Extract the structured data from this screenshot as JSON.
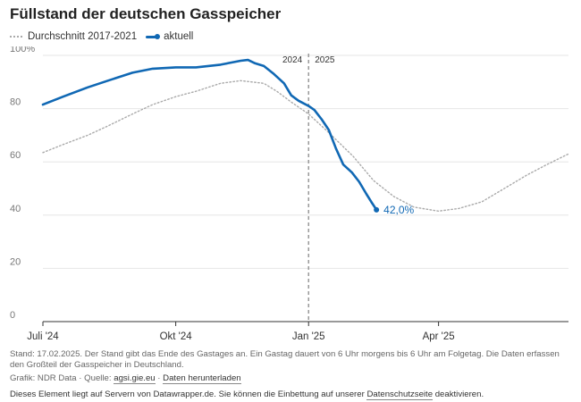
{
  "title": "Füllstand der deutschen Gasspeicher",
  "legend": {
    "average_label": "Durchschnitt 2017-2021",
    "current_label": "aktuell"
  },
  "colors": {
    "current": "#1068b4",
    "average": "#aaaaaa",
    "grid": "#e6e6e6",
    "axis": "#333333",
    "marker": "#999999"
  },
  "chart_data": {
    "type": "line",
    "title": "Füllstand der deutschen Gasspeicher",
    "xlabel": "",
    "ylabel": "",
    "x_unit": "month",
    "x_range": [
      "2024-07-01",
      "2025-06-30"
    ],
    "ylim": [
      0,
      100
    ],
    "y_ticks": [
      0,
      20,
      40,
      60,
      80,
      100
    ],
    "y_tick_labels": [
      "0",
      "20",
      "40",
      "60",
      "80",
      "100%"
    ],
    "x_ticks": [
      {
        "date": "2024-07-01",
        "label": "Juli '24"
      },
      {
        "date": "2024-10-01",
        "label": "Okt '24"
      },
      {
        "date": "2025-01-01",
        "label": "Jan '25"
      },
      {
        "date": "2025-04-01",
        "label": "Apr '25"
      }
    ],
    "grid": true,
    "legend_position": "top-left",
    "year_marker": {
      "date": "2025-01-01",
      "label_before": "2024",
      "label_after": "2025"
    },
    "end_label": "42,0%",
    "series": [
      {
        "name": "Durchschnitt 2017-2021",
        "style": "dotted",
        "points": [
          [
            "2024-07-01",
            63.5
          ],
          [
            "2024-07-15",
            66.5
          ],
          [
            "2024-08-01",
            70
          ],
          [
            "2024-08-15",
            73.5
          ],
          [
            "2024-09-01",
            78
          ],
          [
            "2024-09-15",
            81.5
          ],
          [
            "2024-10-01",
            84.5
          ],
          [
            "2024-10-15",
            86.5
          ],
          [
            "2024-11-01",
            89.5
          ],
          [
            "2024-11-15",
            90.5
          ],
          [
            "2024-12-01",
            89.5
          ],
          [
            "2024-12-10",
            86.5
          ],
          [
            "2024-12-20",
            82.5
          ],
          [
            "2025-01-01",
            78
          ],
          [
            "2025-01-15",
            71
          ],
          [
            "2025-02-01",
            62
          ],
          [
            "2025-02-15",
            53
          ],
          [
            "2025-03-01",
            47
          ],
          [
            "2025-03-15",
            43
          ],
          [
            "2025-04-01",
            41.5
          ],
          [
            "2025-04-15",
            42.5
          ],
          [
            "2025-05-01",
            45
          ],
          [
            "2025-05-15",
            49.5
          ],
          [
            "2025-06-01",
            55
          ],
          [
            "2025-06-15",
            59
          ],
          [
            "2025-06-30",
            63
          ]
        ]
      },
      {
        "name": "aktuell",
        "style": "solid",
        "points": [
          [
            "2024-07-01",
            81.5
          ],
          [
            "2024-07-15",
            84.5
          ],
          [
            "2024-08-01",
            88
          ],
          [
            "2024-08-15",
            90.5
          ],
          [
            "2024-09-01",
            93.5
          ],
          [
            "2024-09-15",
            95
          ],
          [
            "2024-10-01",
            95.5
          ],
          [
            "2024-10-15",
            95.5
          ],
          [
            "2024-11-01",
            96.5
          ],
          [
            "2024-11-15",
            98
          ],
          [
            "2024-11-20",
            98.3
          ],
          [
            "2024-11-25",
            97
          ],
          [
            "2024-12-01",
            96
          ],
          [
            "2024-12-08",
            93
          ],
          [
            "2024-12-15",
            89.5
          ],
          [
            "2024-12-20",
            85
          ],
          [
            "2024-12-25",
            83
          ],
          [
            "2025-01-01",
            81
          ],
          [
            "2025-01-05",
            79.5
          ],
          [
            "2025-01-10",
            76
          ],
          [
            "2025-01-15",
            72
          ],
          [
            "2025-01-20",
            65
          ],
          [
            "2025-01-25",
            59
          ],
          [
            "2025-01-31",
            56
          ],
          [
            "2025-02-05",
            52.5
          ],
          [
            "2025-02-10",
            48
          ],
          [
            "2025-02-14",
            44.5
          ],
          [
            "2025-02-17",
            42
          ]
        ]
      }
    ]
  },
  "notes": {
    "description": "Stand: 17.02.2025. Der Stand gibt das Ende des Gastages an. Ein Gastag dauert von 6 Uhr morgens bis 6 Uhr am Folgetag. Die Daten erfassen den Großteil der Gasspeicher in Deutschland.",
    "credit_prefix": "Grafik: NDR Data · Quelle: ",
    "source_link": "agsi.gie.eu",
    "separator": " · ",
    "download_link": "Daten herunterladen",
    "privacy_prefix": "Dieses Element liegt auf Servern von Datawrapper.de. Sie können die Einbettung auf unserer ",
    "privacy_link": "Datenschutzseite",
    "privacy_suffix": " deaktivieren."
  }
}
